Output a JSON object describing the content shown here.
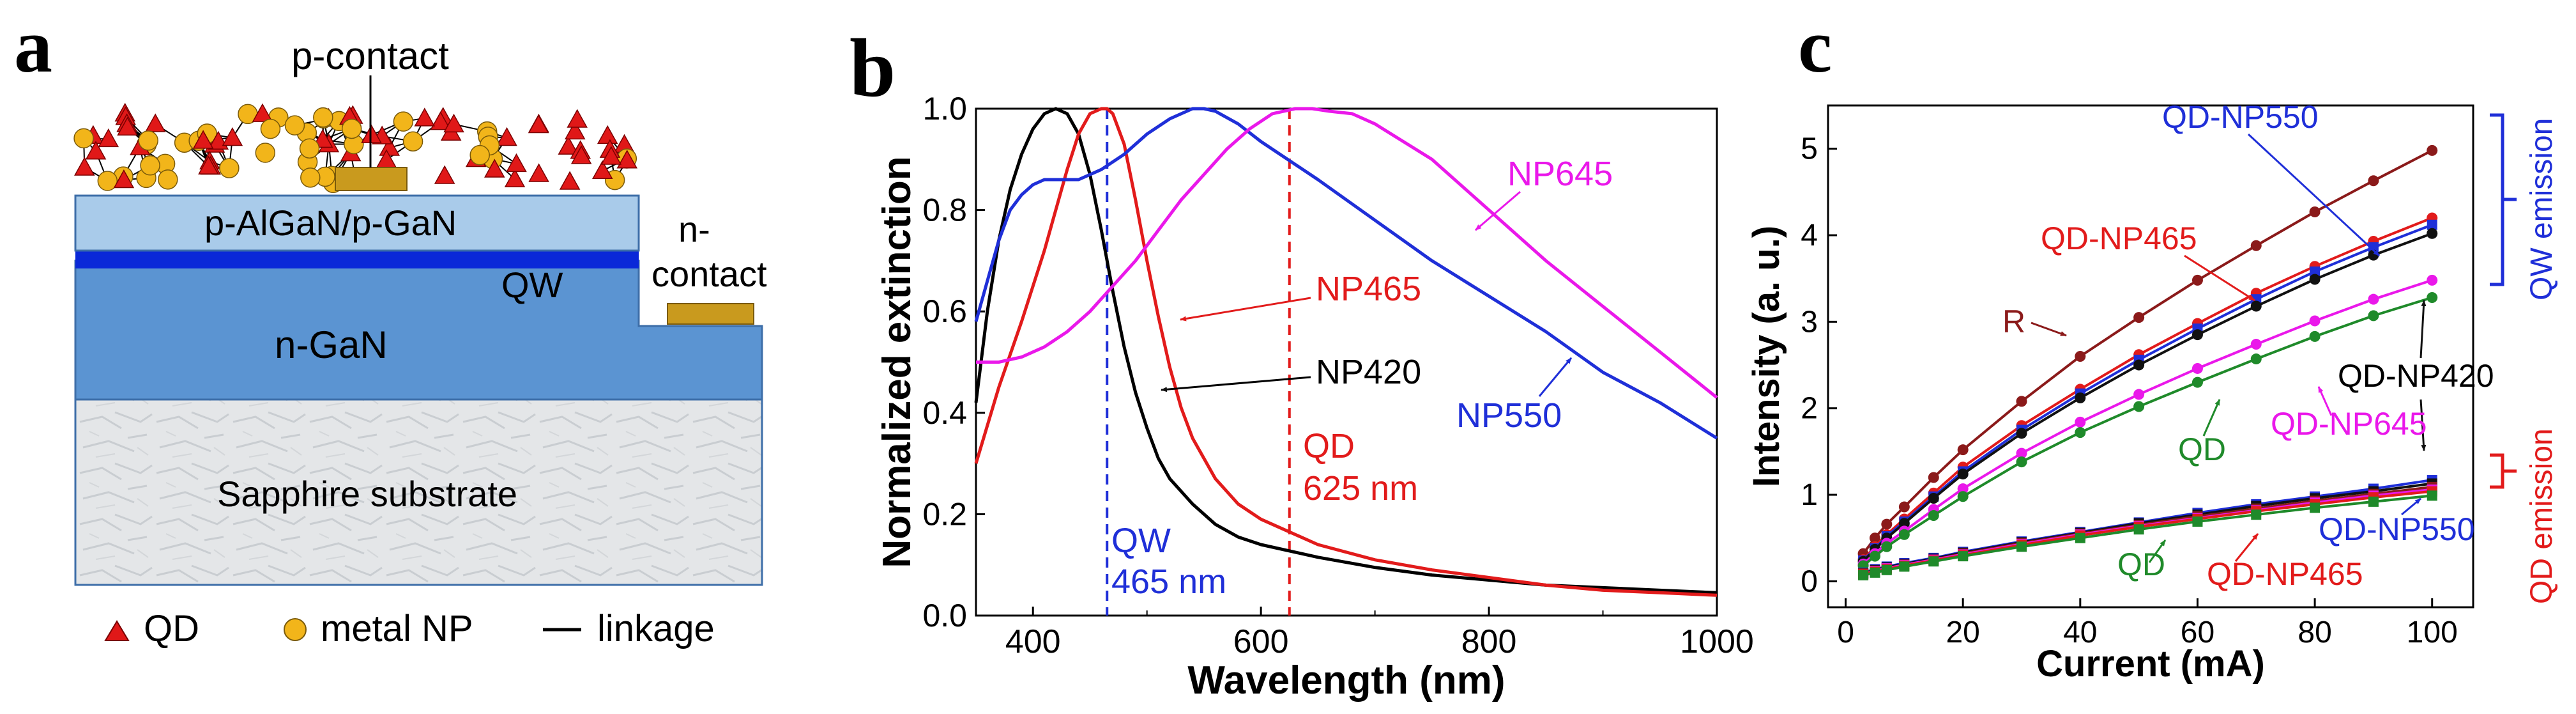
{
  "panel_labels": {
    "a": "a",
    "b": "b",
    "c": "c"
  },
  "panel_a": {
    "device_labels": {
      "p_contact": "p-contact",
      "p_layer": "p-AlGaN/p-GaN",
      "qw": "QW",
      "n_contact_line1": "n-",
      "n_contact_line2": "contact",
      "n_gan": "n-GaN",
      "substrate": "Sapphire substrate"
    },
    "legend": {
      "qd": "QD",
      "metal_np": "metal NP",
      "linkage": "linkage"
    },
    "colors": {
      "p_layer": "#a9cbea",
      "qw": "#0a28d8",
      "n_gan": "#5b94d2",
      "contact": "#c99a1e",
      "qd": "#e01818",
      "np": "#f2b51a",
      "sapphire": "#e6e8ea"
    }
  },
  "chart_data": [
    {
      "type": "line",
      "panel": "b",
      "title": "",
      "xlabel": "Wavelength (nm)",
      "ylabel": "Normalized extinction",
      "xlim": [
        350,
        1000
      ],
      "ylim": [
        0,
        1.0
      ],
      "xticks": [
        400,
        600,
        800,
        1000
      ],
      "yticks": [
        0.0,
        0.2,
        0.4,
        0.6,
        0.8,
        1.0
      ],
      "series": [
        {
          "name": "NP420",
          "color": "#000000",
          "x": [
            350,
            360,
            370,
            380,
            390,
            400,
            410,
            420,
            430,
            440,
            450,
            460,
            470,
            480,
            490,
            500,
            510,
            520,
            540,
            560,
            580,
            600,
            650,
            700,
            750,
            800,
            850,
            900,
            950,
            1000
          ],
          "y": [
            0.42,
            0.6,
            0.74,
            0.84,
            0.91,
            0.96,
            0.99,
            1.0,
            0.99,
            0.95,
            0.87,
            0.76,
            0.64,
            0.53,
            0.44,
            0.37,
            0.31,
            0.27,
            0.22,
            0.18,
            0.155,
            0.14,
            0.115,
            0.095,
            0.08,
            0.07,
            0.06,
            0.055,
            0.05,
            0.045
          ]
        },
        {
          "name": "NP465",
          "color": "#e21b1b",
          "x": [
            350,
            370,
            390,
            410,
            420,
            430,
            440,
            450,
            460,
            465,
            470,
            480,
            490,
            500,
            510,
            520,
            530,
            540,
            560,
            580,
            600,
            650,
            700,
            750,
            800,
            850,
            900,
            950,
            1000
          ],
          "y": [
            0.3,
            0.45,
            0.58,
            0.72,
            0.8,
            0.88,
            0.95,
            0.99,
            1.0,
            1.0,
            0.99,
            0.93,
            0.82,
            0.7,
            0.59,
            0.49,
            0.41,
            0.35,
            0.27,
            0.22,
            0.19,
            0.14,
            0.11,
            0.09,
            0.075,
            0.06,
            0.05,
            0.045,
            0.04
          ]
        },
        {
          "name": "NP550",
          "color": "#1f2fd8",
          "x": [
            350,
            360,
            370,
            380,
            390,
            400,
            410,
            420,
            430,
            440,
            450,
            460,
            480,
            500,
            520,
            540,
            550,
            560,
            580,
            600,
            650,
            700,
            750,
            800,
            850,
            900,
            950,
            1000
          ],
          "y": [
            0.58,
            0.66,
            0.74,
            0.8,
            0.83,
            0.85,
            0.86,
            0.86,
            0.86,
            0.86,
            0.87,
            0.88,
            0.91,
            0.95,
            0.98,
            1.0,
            1.0,
            0.995,
            0.97,
            0.935,
            0.86,
            0.78,
            0.7,
            0.63,
            0.56,
            0.48,
            0.42,
            0.35
          ]
        },
        {
          "name": "NP645",
          "color": "#ea18ea",
          "x": [
            350,
            370,
            390,
            410,
            430,
            450,
            470,
            490,
            510,
            530,
            550,
            570,
            590,
            610,
            630,
            645,
            660,
            680,
            700,
            750,
            800,
            850,
            900,
            950,
            1000
          ],
          "y": [
            0.5,
            0.5,
            0.51,
            0.53,
            0.56,
            0.6,
            0.65,
            0.7,
            0.76,
            0.82,
            0.87,
            0.92,
            0.96,
            0.99,
            1.0,
            1.0,
            0.995,
            0.99,
            0.97,
            0.9,
            0.8,
            0.7,
            0.61,
            0.52,
            0.43
          ]
        }
      ],
      "reference_lines": [
        {
          "x": 465,
          "color": "#1f2fd8",
          "label_line1": "QW",
          "label_line2": "465 nm"
        },
        {
          "x": 625,
          "color": "#e21b1b",
          "label_line1": "QD",
          "label_line2": "625 nm"
        }
      ],
      "annotations": {
        "np645": "NP645",
        "np465": "NP465",
        "np420": "NP420",
        "np550": "NP550"
      }
    },
    {
      "type": "line",
      "panel": "c",
      "title": "",
      "xlabel": "Current (mA)",
      "ylabel": "Intensity (a. u.)",
      "xlim": [
        -3,
        107
      ],
      "ylim": [
        -0.3,
        5.5
      ],
      "xticks": [
        0,
        20,
        40,
        60,
        80,
        100
      ],
      "yticks": [
        0,
        1,
        2,
        3,
        4,
        5
      ],
      "x": [
        3,
        5,
        7,
        10,
        15,
        20,
        30,
        40,
        50,
        60,
        70,
        80,
        90,
        100
      ],
      "series": [
        {
          "name": "R (QW)",
          "color": "#8b1a1a",
          "marker": "circle",
          "values": [
            0.32,
            0.5,
            0.66,
            0.86,
            1.2,
            1.52,
            2.08,
            2.6,
            3.05,
            3.48,
            3.88,
            4.27,
            4.63,
            4.98
          ]
        },
        {
          "name": "QD-NP465 (QW)",
          "color": "#e21b1b",
          "marker": "circle",
          "values": [
            0.25,
            0.4,
            0.54,
            0.72,
            1.02,
            1.32,
            1.8,
            2.22,
            2.62,
            2.98,
            3.33,
            3.64,
            3.93,
            4.2
          ]
        },
        {
          "name": "QD-NP550 (QW)",
          "color": "#1f2fd8",
          "marker": "square",
          "values": [
            0.24,
            0.38,
            0.52,
            0.69,
            0.98,
            1.27,
            1.75,
            2.17,
            2.56,
            2.92,
            3.26,
            3.58,
            3.86,
            4.12
          ]
        },
        {
          "name": "QD-NP420 (QW)",
          "color": "#111111",
          "marker": "circle",
          "values": [
            0.23,
            0.37,
            0.5,
            0.67,
            0.96,
            1.24,
            1.71,
            2.12,
            2.5,
            2.85,
            3.18,
            3.49,
            3.77,
            4.02
          ]
        },
        {
          "name": "QD-NP645 (QW)",
          "color": "#ea18ea",
          "marker": "circle",
          "values": [
            0.2,
            0.32,
            0.44,
            0.58,
            0.83,
            1.07,
            1.48,
            1.84,
            2.16,
            2.46,
            2.74,
            3.01,
            3.26,
            3.48
          ]
        },
        {
          "name": "QD (QW)",
          "color": "#1f8a2a",
          "marker": "circle",
          "values": [
            0.18,
            0.29,
            0.4,
            0.54,
            0.76,
            0.98,
            1.38,
            1.72,
            2.02,
            2.3,
            2.57,
            2.83,
            3.07,
            3.28
          ]
        },
        {
          "name": "QD-NP550 (QD)",
          "color": "#1f2fd8",
          "marker": "square",
          "values": [
            0.1,
            0.14,
            0.17,
            0.21,
            0.27,
            0.34,
            0.46,
            0.57,
            0.68,
            0.79,
            0.89,
            0.98,
            1.07,
            1.17
          ]
        },
        {
          "name": "QD-NP420 (QD)",
          "color": "#111111",
          "marker": "square",
          "values": [
            0.09,
            0.13,
            0.16,
            0.2,
            0.26,
            0.33,
            0.45,
            0.56,
            0.67,
            0.77,
            0.87,
            0.96,
            1.04,
            1.13
          ]
        },
        {
          "name": "R (QD)",
          "color": "#8b1a1a",
          "marker": "square",
          "values": [
            0.09,
            0.12,
            0.15,
            0.19,
            0.25,
            0.32,
            0.44,
            0.55,
            0.65,
            0.75,
            0.84,
            0.93,
            1.01,
            1.09
          ]
        },
        {
          "name": "QD-NP645 (QD)",
          "color": "#ea18ea",
          "marker": "square",
          "values": [
            0.08,
            0.12,
            0.15,
            0.19,
            0.25,
            0.31,
            0.43,
            0.54,
            0.64,
            0.73,
            0.82,
            0.91,
            0.99,
            1.06
          ]
        },
        {
          "name": "QD-NP465 (QD)",
          "color": "#e21b1b",
          "marker": "square",
          "values": [
            0.08,
            0.11,
            0.14,
            0.18,
            0.24,
            0.3,
            0.42,
            0.53,
            0.63,
            0.72,
            0.81,
            0.89,
            0.97,
            1.04
          ]
        },
        {
          "name": "QD (QD)",
          "color": "#1f8a2a",
          "marker": "square",
          "values": [
            0.07,
            0.1,
            0.13,
            0.17,
            0.23,
            0.29,
            0.4,
            0.5,
            0.6,
            0.69,
            0.77,
            0.85,
            0.92,
            0.99
          ]
        }
      ],
      "annotations": {
        "qd_np550_top": "QD-NP550",
        "qd_np465_top": "QD-NP465",
        "r": "R",
        "qd_np420": "QD-NP420",
        "qd_top": "QD",
        "qd_np645": "QD-NP645",
        "qd_bottom": "QD",
        "qd_np465_bottom": "QD-NP465",
        "qd_np550_bottom": "QD-NP550"
      },
      "brackets": {
        "qw_emission": "QW emission",
        "qd_emission": "QD emission"
      }
    }
  ]
}
